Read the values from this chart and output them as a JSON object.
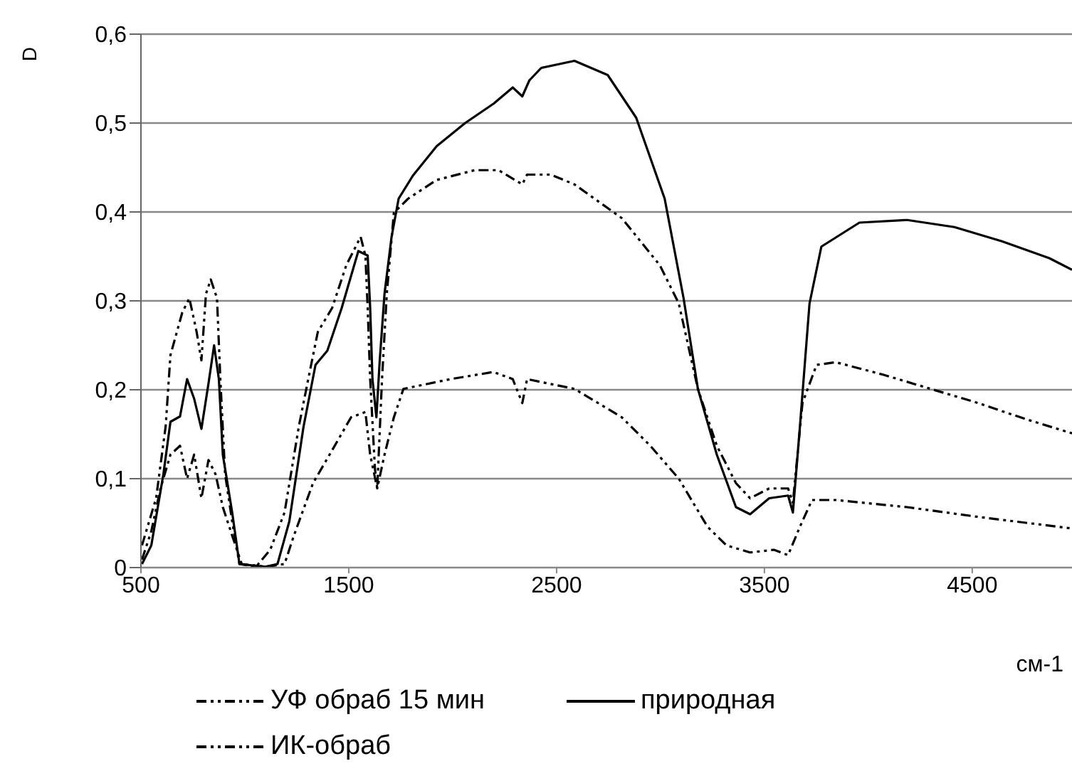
{
  "chart_data": {
    "type": "line",
    "xlabel": "см-1",
    "ylabel": "D",
    "xlim": [
      500,
      4980
    ],
    "xticks": [
      500,
      1500,
      2500,
      3500,
      4500
    ],
    "ylim": [
      0,
      0.6
    ],
    "yticks": [
      0,
      {
        "value": 0.1,
        "label": "0,1"
      },
      {
        "value": 0.2,
        "label": "0,2"
      },
      {
        "value": 0.3,
        "label": "0,3"
      },
      {
        "value": 0.4,
        "label": "0,4"
      },
      {
        "value": 0.5,
        "label": "0,5"
      },
      {
        "value": 0.6,
        "label": "0,6"
      }
    ],
    "grid": "y",
    "legend": "bottom",
    "marker": "none",
    "series": [
      {
        "name": "УФ обраб 15 мин",
        "color": "#000000",
        "line_style": "dashed",
        "x": [
          505,
          550,
          594,
          642,
          688,
          722,
          756,
          791,
          825,
          859,
          894,
          939,
          985,
          1099,
          1191,
          1236,
          1328,
          1420,
          1511,
          1580,
          1603,
          1637,
          1672,
          1717,
          1763,
          1990,
          2196,
          2289,
          2335,
          2358,
          2586,
          2814,
          2951,
          3088,
          3226,
          3317,
          3431,
          3546,
          3614,
          3671,
          3729,
          3843,
          4186,
          4529,
          4980
        ],
        "values": [
          0.009,
          0.041,
          0.089,
          0.127,
          0.137,
          0.1,
          0.127,
          0.078,
          0.121,
          0.105,
          0.068,
          0.036,
          0.004,
          0.001,
          0.004,
          0.036,
          0.095,
          0.132,
          0.169,
          0.175,
          0.127,
          0.089,
          0.127,
          0.169,
          0.201,
          0.212,
          0.22,
          0.212,
          0.185,
          0.212,
          0.201,
          0.169,
          0.137,
          0.1,
          0.046,
          0.025,
          0.017,
          0.02,
          0.014,
          0.046,
          0.076,
          0.076,
          0.068,
          0.057,
          0.044
        ]
      },
      {
        "name": "природная",
        "color": "#000000",
        "line_style": "solid",
        "x": [
          505,
          550,
          608,
          642,
          688,
          722,
          756,
          791,
          825,
          852,
          875,
          894,
          939,
          974,
          1099,
          1157,
          1214,
          1282,
          1340,
          1397,
          1466,
          1546,
          1591,
          1603,
          1614,
          1633,
          1649,
          1672,
          1706,
          1740,
          1809,
          1923,
          2060,
          2198,
          2289,
          2335,
          2369,
          2426,
          2586,
          2746,
          2883,
          3020,
          3111,
          3180,
          3271,
          3363,
          3431,
          3523,
          3614,
          3637,
          3671,
          3717,
          3774,
          3957,
          4186,
          4414,
          4643,
          4871,
          4980
        ],
        "values": [
          0.004,
          0.025,
          0.105,
          0.164,
          0.17,
          0.212,
          0.19,
          0.156,
          0.207,
          0.25,
          0.212,
          0.127,
          0.062,
          0.004,
          0.001,
          0.004,
          0.052,
          0.158,
          0.228,
          0.244,
          0.292,
          0.356,
          0.351,
          0.292,
          0.212,
          0.169,
          0.233,
          0.308,
          0.372,
          0.415,
          0.441,
          0.474,
          0.5,
          0.522,
          0.54,
          0.53,
          0.548,
          0.562,
          0.57,
          0.554,
          0.506,
          0.415,
          0.303,
          0.201,
          0.127,
          0.068,
          0.06,
          0.078,
          0.081,
          0.062,
          0.159,
          0.297,
          0.361,
          0.388,
          0.391,
          0.383,
          0.367,
          0.348,
          0.335
        ]
      },
      {
        "name": "ИК-обраб",
        "color": "#000000",
        "line_style": "dashed",
        "x": [
          505,
          573,
          619,
          642,
          699,
          733,
          768,
          791,
          813,
          836,
          866,
          882,
          905,
          939,
          974,
          1054,
          1122,
          1191,
          1260,
          1305,
          1351,
          1420,
          1488,
          1557,
          1580,
          1591,
          1603,
          1626,
          1637,
          1660,
          1683,
          1717,
          1786,
          1923,
          2106,
          2221,
          2335,
          2358,
          2471,
          2586,
          2814,
          2997,
          3088,
          3180,
          3271,
          3363,
          3431,
          3523,
          3614,
          3637,
          3683,
          3751,
          3843,
          4071,
          4300,
          4529,
          4757,
          4980
        ],
        "values": [
          0.025,
          0.078,
          0.159,
          0.239,
          0.287,
          0.303,
          0.265,
          0.233,
          0.308,
          0.324,
          0.303,
          0.212,
          0.105,
          0.052,
          0.004,
          0.001,
          0.02,
          0.062,
          0.159,
          0.212,
          0.265,
          0.292,
          0.34,
          0.372,
          0.351,
          0.292,
          0.212,
          0.111,
          0.089,
          0.212,
          0.308,
          0.399,
          0.415,
          0.436,
          0.447,
          0.447,
          0.431,
          0.442,
          0.442,
          0.431,
          0.393,
          0.34,
          0.297,
          0.201,
          0.137,
          0.095,
          0.078,
          0.089,
          0.089,
          0.073,
          0.185,
          0.228,
          0.231,
          0.217,
          0.201,
          0.185,
          0.167,
          0.151
        ]
      }
    ]
  }
}
